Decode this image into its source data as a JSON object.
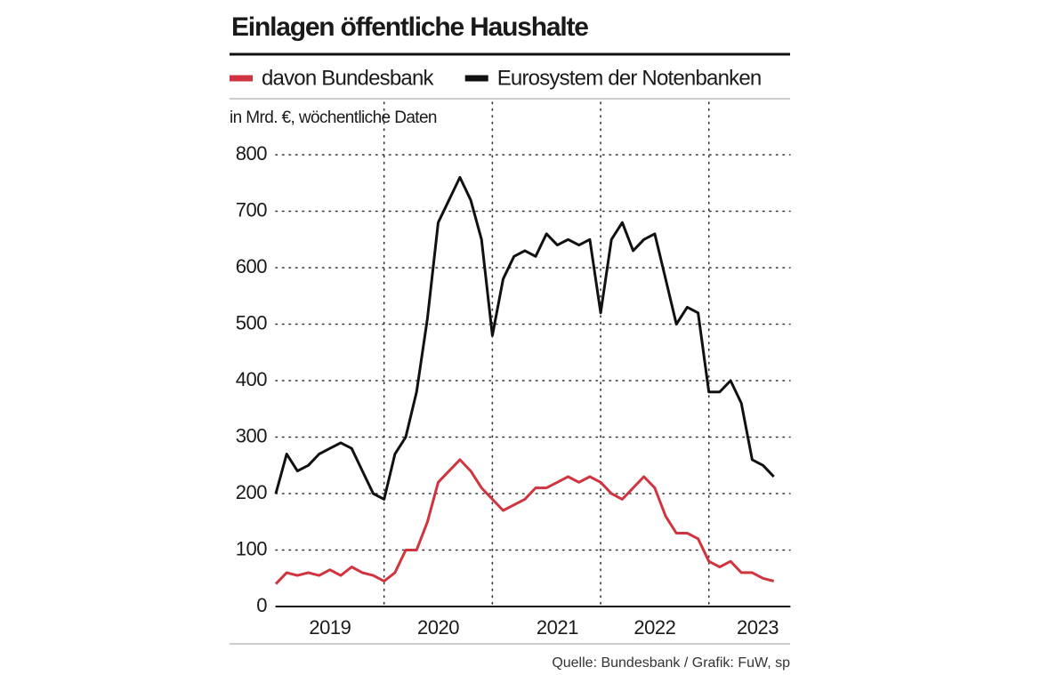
{
  "chart_data": {
    "type": "line",
    "title": "Einlagen öffentliche Haushalte",
    "subtitle": "in Mrd. €, wöchentliche Daten",
    "source": "Quelle: Bundesbank / Grafik: FuW, sp",
    "x": [
      2019.0,
      2019.1,
      2019.2,
      2019.3,
      2019.4,
      2019.5,
      2019.6,
      2019.7,
      2019.8,
      2019.9,
      2020.0,
      2020.1,
      2020.2,
      2020.3,
      2020.4,
      2020.5,
      2020.6,
      2020.7,
      2020.8,
      2020.9,
      2021.0,
      2021.1,
      2021.2,
      2021.3,
      2021.4,
      2021.5,
      2021.6,
      2021.7,
      2021.8,
      2021.9,
      2022.0,
      2022.1,
      2022.2,
      2022.3,
      2022.4,
      2022.5,
      2022.6,
      2022.7,
      2022.8,
      2022.9,
      2023.0,
      2023.1,
      2023.2,
      2023.3,
      2023.4,
      2023.5,
      2023.6
    ],
    "series": [
      {
        "name": "davon Bundesbank",
        "color": "#d0343f",
        "values": [
          40,
          60,
          55,
          60,
          55,
          65,
          55,
          70,
          60,
          55,
          45,
          60,
          100,
          100,
          150,
          220,
          240,
          260,
          240,
          210,
          190,
          170,
          180,
          190,
          210,
          210,
          220,
          230,
          220,
          230,
          220,
          200,
          190,
          210,
          230,
          210,
          160,
          130,
          130,
          120,
          80,
          70,
          80,
          60,
          60,
          50,
          45
        ]
      },
      {
        "name": "Eurosystem der Notenbanken",
        "color": "#111111",
        "values": [
          200,
          270,
          240,
          250,
          270,
          280,
          290,
          280,
          240,
          200,
          190,
          270,
          300,
          380,
          510,
          680,
          720,
          760,
          720,
          650,
          480,
          580,
          620,
          630,
          620,
          660,
          640,
          650,
          640,
          650,
          520,
          650,
          680,
          630,
          650,
          660,
          580,
          500,
          530,
          520,
          380,
          380,
          400,
          360,
          260,
          250,
          230
        ]
      }
    ],
    "xlim": [
      2019,
      2023.75
    ],
    "xticks": [
      {
        "value": 2019.5,
        "label": "2019"
      },
      {
        "value": 2020.5,
        "label": "2020"
      },
      {
        "value": 2021.6,
        "label": "2021"
      },
      {
        "value": 2022.5,
        "label": "2022"
      },
      {
        "value": 2023.45,
        "label": "2023"
      }
    ],
    "x_dividers": [
      2020,
      2021,
      2022,
      2023
    ],
    "ylim": [
      0,
      800
    ],
    "yticks": [
      0,
      100,
      200,
      300,
      400,
      500,
      600,
      700,
      800
    ],
    "grid": true
  }
}
